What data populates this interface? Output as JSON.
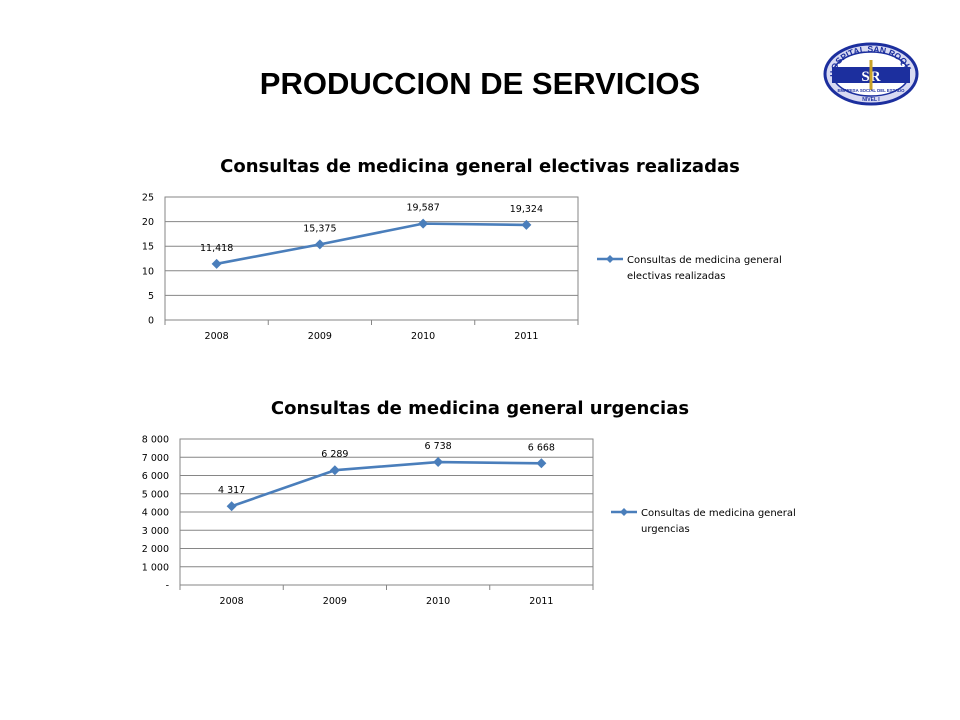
{
  "page": {
    "title": "PRODUCCION DE SERVICIOS"
  },
  "logo": {
    "text_top": "HOSPITAL SAN ROQUE",
    "monogram": "SR",
    "text_bottom": "EMPRESA SOCIAL DEL ESTADO",
    "level": "NIVEL I"
  },
  "colors": {
    "series": "#4a7ebb",
    "grid": "#868686",
    "text": "#000000"
  },
  "chart_data": [
    {
      "type": "line",
      "title": "Consultas de medicina general electivas realizadas",
      "categories": [
        "2008",
        "2009",
        "2010",
        "2011"
      ],
      "ylim": [
        0,
        25
      ],
      "y_ticks": [
        "0",
        "5",
        "10",
        "15",
        "20",
        "25"
      ],
      "series": [
        {
          "name": "Consultas de medicina general electivas realizadas",
          "values": [
            11.418,
            15.375,
            19.587,
            19.324
          ],
          "labels": [
            "11,418",
            "15,375",
            "19,587",
            "19,324"
          ]
        }
      ],
      "legend_lines": [
        "Consultas de medicina general",
        "electivas realizadas"
      ],
      "legend_position": "right",
      "grid": true
    },
    {
      "type": "line",
      "title": "Consultas de medicina general urgencias",
      "categories": [
        "2008",
        "2009",
        "2010",
        "2011"
      ],
      "ylim": [
        0,
        8000
      ],
      "y_ticks": [
        "-",
        "1 000",
        "2 000",
        "3 000",
        "4 000",
        "5 000",
        "6 000",
        "7 000",
        "8 000"
      ],
      "series": [
        {
          "name": "Consultas de medicina general urgencias",
          "values": [
            4317,
            6289,
            6738,
            6668
          ],
          "labels": [
            "4 317",
            "6 289",
            "6 738",
            "6 668"
          ]
        }
      ],
      "legend_lines": [
        "Consultas de medicina general",
        "urgencias"
      ],
      "legend_position": "right",
      "grid": true
    }
  ]
}
